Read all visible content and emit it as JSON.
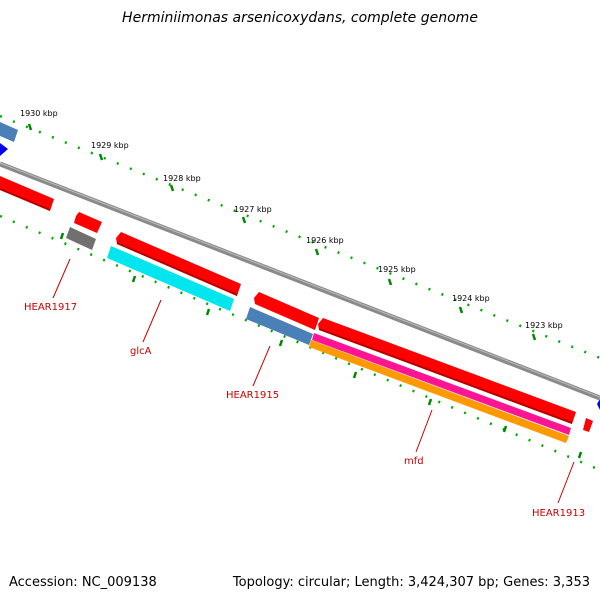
{
  "title": "Herminiimonas arsenicoxydans, complete genome",
  "footer": {
    "accession": "Accession: NC_009138",
    "stats": "Topology: circular; Length: 3,424,307 bp; Genes: 3,353"
  },
  "ticks": [
    "1930 kbp",
    "1929 kbp",
    "1928 kbp",
    "1927 kbp",
    "1926 kbp",
    "1925 kbp",
    "1924 kbp",
    "1923 kbp"
  ],
  "gene_labels": [
    "HEAR1917",
    "glcA",
    "HEAR1915",
    "mfd",
    "HEAR1913"
  ],
  "colors": {
    "backbone": "#8a8a8a",
    "forward_gene": "#ff0000",
    "glcA": "#00e5ee",
    "blue_gene": "#4a7fb8",
    "gray_gene": "#707070",
    "magenta_track": "#ff1493",
    "orange_track": "#ff9900",
    "dark_blue": "#0000ee",
    "tick_green": "#00aa00",
    "label_red": "#cc0000"
  }
}
